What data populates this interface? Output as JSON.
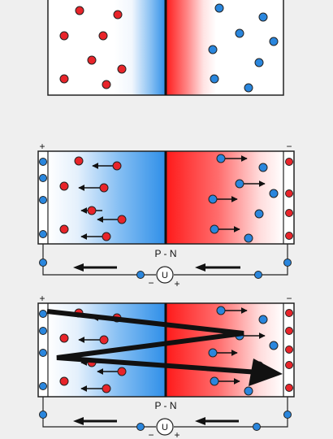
{
  "panels": {
    "equilibrium": {},
    "bias_top": {
      "terminal_plus": "+",
      "terminal_minus": "−",
      "junction_label": "P - N",
      "source_symbol": "U",
      "source_minus": "−",
      "source_plus": "+"
    },
    "bias_bottom": {
      "terminal_plus": "+",
      "terminal_minus": "−",
      "junction_label": "P - N",
      "source_symbol": "U",
      "source_minus": "−",
      "source_plus": "+"
    }
  },
  "colors": {
    "background": "#efefef",
    "p_side": "#2f8fe8",
    "n_side": "#ff1a1a",
    "hole_dot": "#e8242a",
    "electron_dot": "#2a86dd",
    "outline": "#222222"
  }
}
